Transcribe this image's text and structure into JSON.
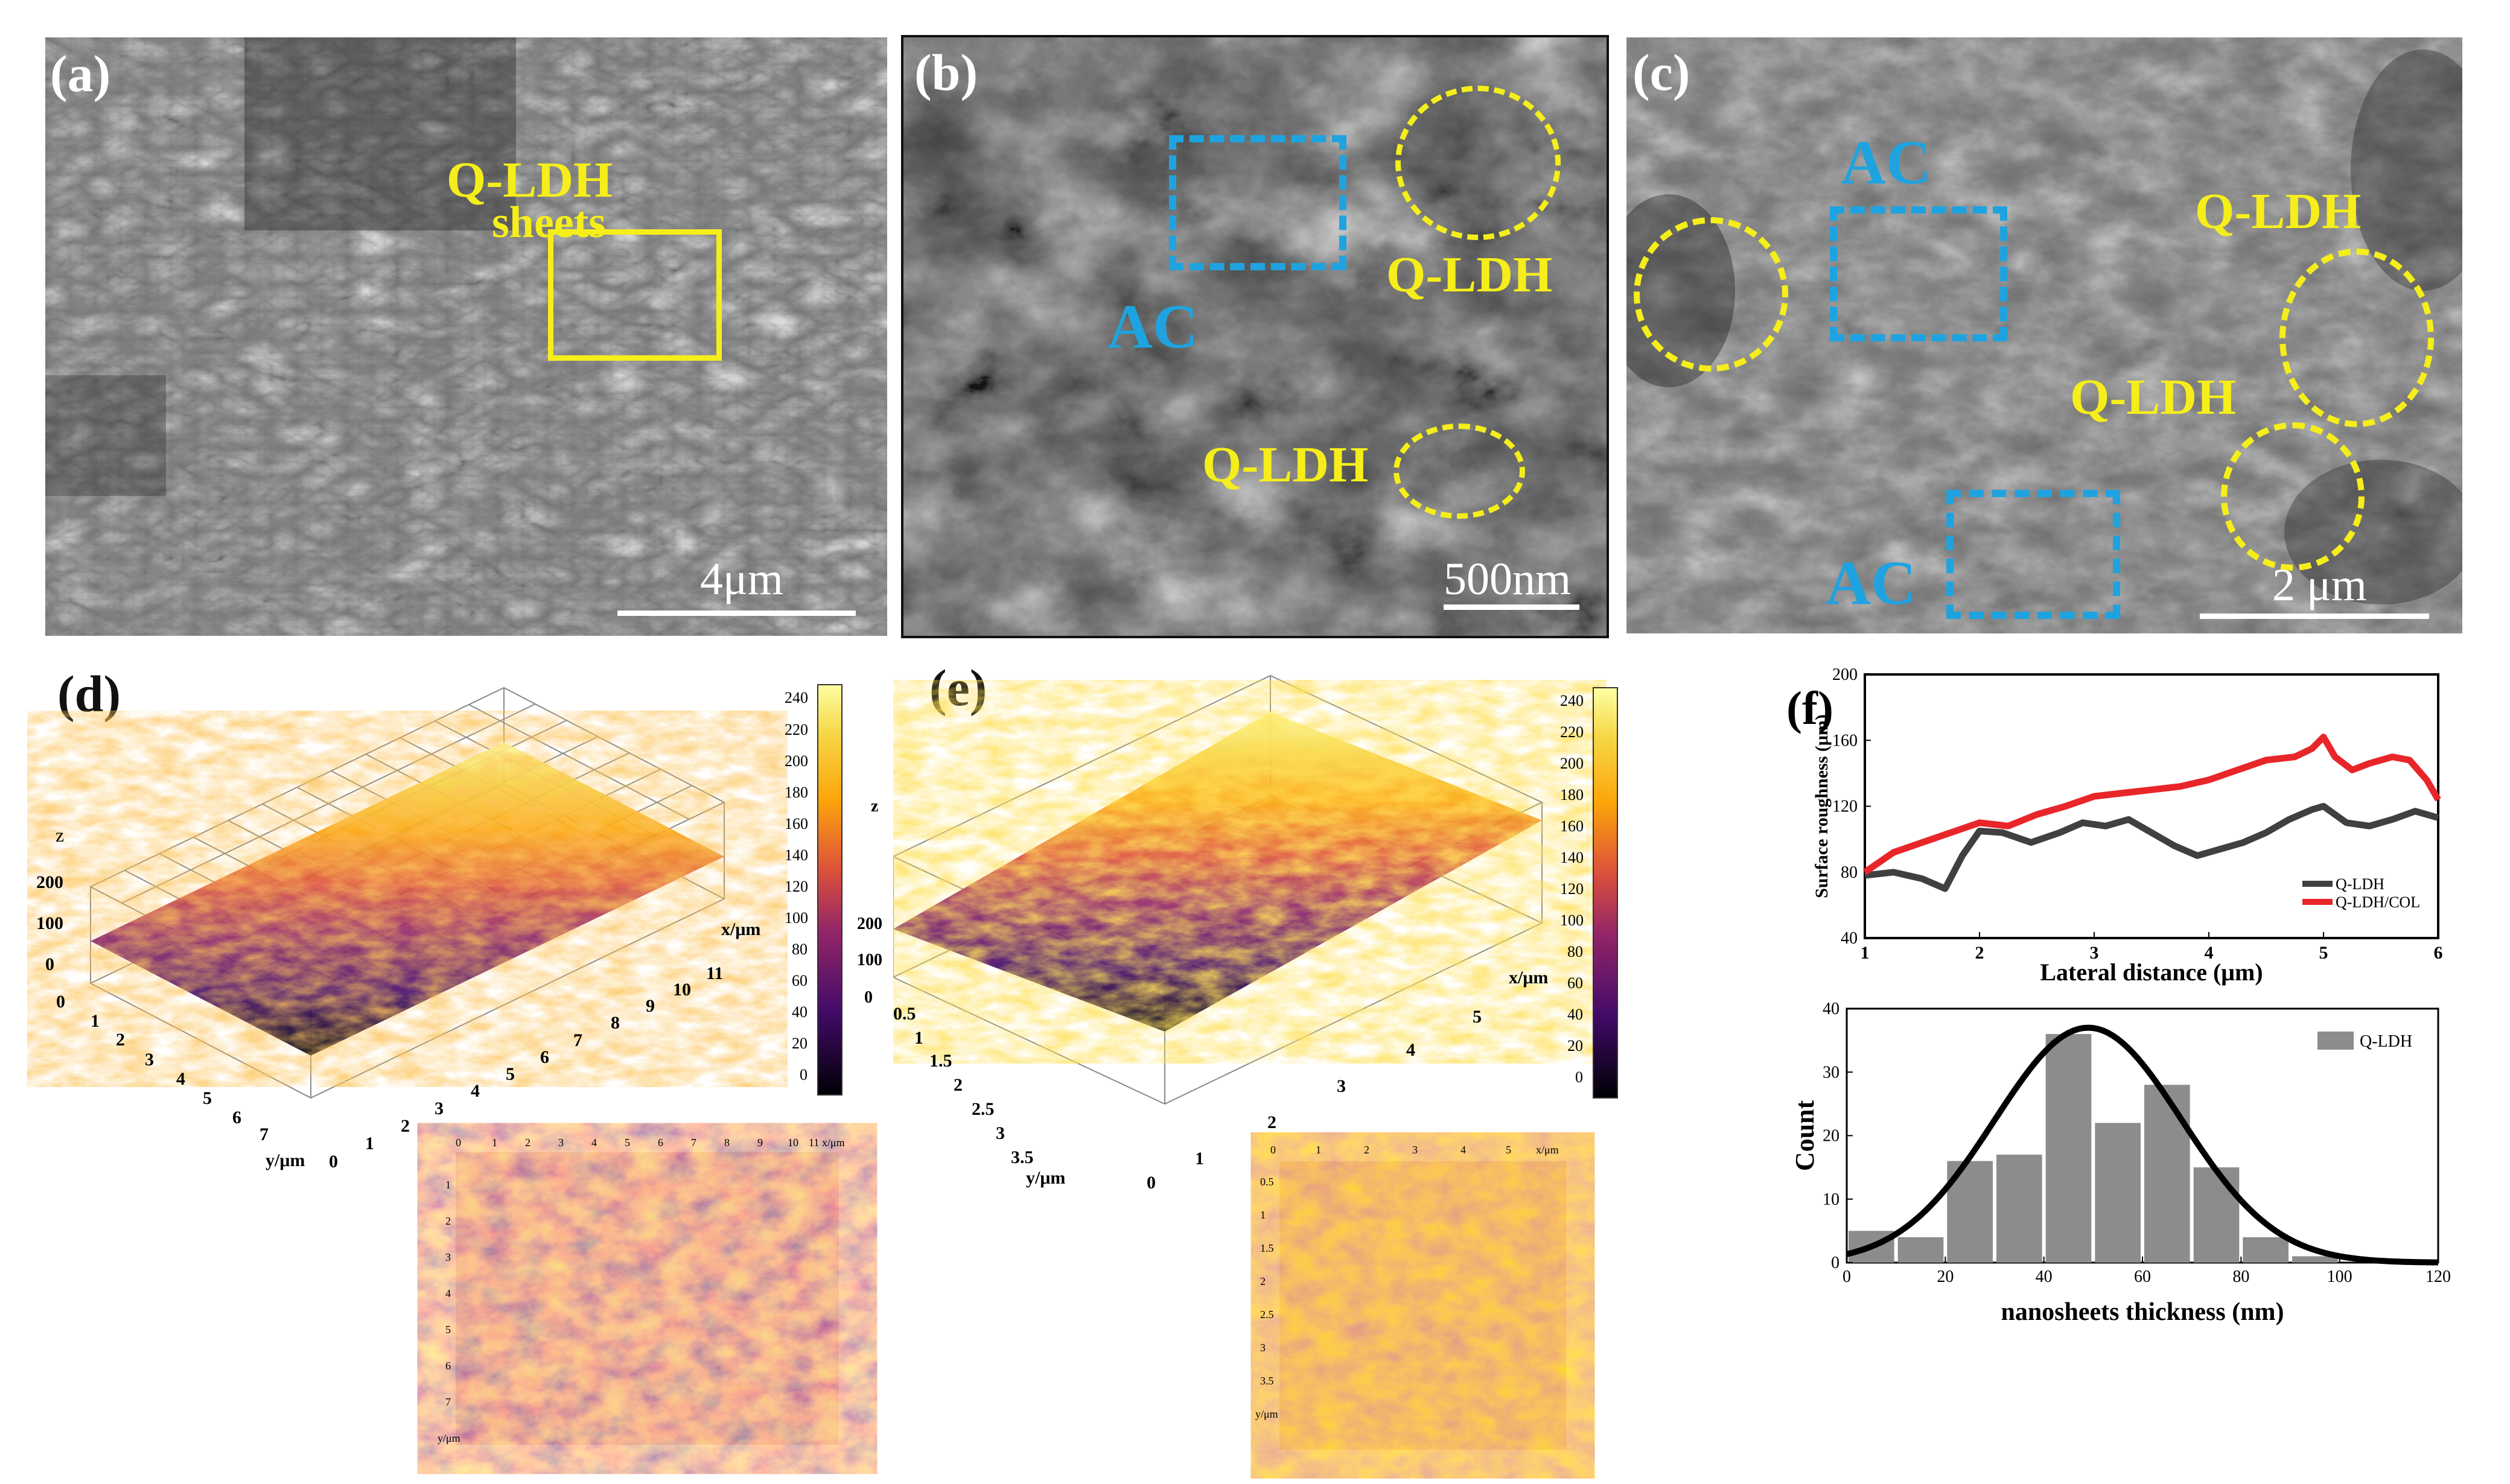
{
  "panels": {
    "a": {
      "label": "(a)",
      "ann_title": "Q-LDH",
      "ann_sub": "sheets",
      "scale": "4μm"
    },
    "b": {
      "label": "(b)",
      "ann_qldh1": "Q-LDH",
      "ann_qldh2": "Q-LDH",
      "ann_ac": "AC",
      "scale": "500nm"
    },
    "c": {
      "label": "(c)",
      "ann_ac1": "AC",
      "ann_ac2": "AC",
      "ann_qldh1": "Q-LDH",
      "ann_qldh2": "Q-LDH",
      "scale": "2 μm"
    },
    "d": {
      "label": "(d)",
      "z_label": "z",
      "x_label": "x/μm",
      "y_label": "y/μm",
      "z_ticks": [
        "200",
        "100",
        "0"
      ],
      "x_ticks": [
        "0",
        "1",
        "2",
        "3",
        "4",
        "5",
        "6",
        "7",
        "8",
        "9",
        "10",
        "11"
      ],
      "y_ticks": [
        "0",
        "1",
        "2",
        "3",
        "4",
        "5",
        "6",
        "7"
      ],
      "cb_ticks": [
        "240",
        "220",
        "200",
        "180",
        "160",
        "140",
        "120",
        "100",
        "80",
        "60",
        "40",
        "20",
        "0"
      ],
      "cb_z": [
        "z",
        "200",
        "100",
        "0"
      ],
      "map_x": [
        "0",
        "1",
        "2",
        "3",
        "4",
        "5",
        "6",
        "7",
        "8",
        "9",
        "10",
        "11",
        "x/μm"
      ],
      "map_y": [
        "1",
        "2",
        "3",
        "4",
        "5",
        "6",
        "7",
        "y/μm"
      ]
    },
    "e": {
      "label": "(e)",
      "x_label": "x/μm",
      "y_label": "y/μm",
      "x_ticks": [
        "0",
        "1",
        "2",
        "3",
        "4",
        "5"
      ],
      "y_ticks": [
        "0",
        "0.5",
        "1",
        "1.5",
        "2",
        "2.5",
        "3",
        "3.5"
      ],
      "cb_ticks": [
        "240",
        "220",
        "200",
        "180",
        "160",
        "140",
        "120",
        "100",
        "80",
        "60",
        "40",
        "20",
        "0"
      ],
      "cb_z": [
        "z",
        "200",
        "100",
        "0"
      ],
      "map_x": [
        "0",
        "1",
        "2",
        "3",
        "4",
        "5",
        "x/μm"
      ],
      "map_y": [
        "0.5",
        "1",
        "1.5",
        "2",
        "2.5",
        "3",
        "3.5",
        "y/μm"
      ]
    },
    "f": {
      "label": "(f)"
    }
  },
  "chart_data": [
    {
      "type": "line",
      "xlabel": "Lateral distance (μm)",
      "ylabel": "Surface roughness (μm)",
      "xlim": [
        1,
        6
      ],
      "ylim": [
        40,
        200
      ],
      "xticks": [
        1,
        2,
        3,
        4,
        5,
        6
      ],
      "yticks": [
        40,
        80,
        120,
        160,
        200
      ],
      "legend": "bottom-right",
      "series": [
        {
          "name": "Q-LDH",
          "color": "#404040",
          "x": [
            1.0,
            1.25,
            1.5,
            1.7,
            1.85,
            2.0,
            2.2,
            2.45,
            2.7,
            2.9,
            3.1,
            3.3,
            3.5,
            3.7,
            3.9,
            4.1,
            4.3,
            4.5,
            4.7,
            4.9,
            5.0,
            5.2,
            5.4,
            5.6,
            5.8,
            6.0
          ],
          "y": [
            78,
            80,
            76,
            70,
            90,
            105,
            104,
            98,
            104,
            110,
            108,
            112,
            104,
            96,
            90,
            94,
            98,
            104,
            112,
            118,
            120,
            110,
            108,
            112,
            117,
            113
          ]
        },
        {
          "name": "Q-LDH/COL",
          "color": "#e8262a",
          "x": [
            1.0,
            1.25,
            1.5,
            1.75,
            2.0,
            2.25,
            2.5,
            2.75,
            3.0,
            3.25,
            3.5,
            3.75,
            4.0,
            4.25,
            4.5,
            4.75,
            4.9,
            5.0,
            5.1,
            5.25,
            5.4,
            5.6,
            5.75,
            5.9,
            6.0
          ],
          "y": [
            80,
            92,
            98,
            104,
            110,
            108,
            115,
            120,
            126,
            128,
            130,
            132,
            136,
            142,
            148,
            150,
            155,
            162,
            150,
            142,
            146,
            150,
            148,
            136,
            124
          ]
        }
      ]
    },
    {
      "type": "bar",
      "xlabel": "nanosheets thickness (nm)",
      "ylabel": "Count",
      "xlim": [
        0,
        120
      ],
      "ylim": [
        0,
        40
      ],
      "xticks": [
        0,
        20,
        40,
        60,
        80,
        100,
        120
      ],
      "yticks": [
        0,
        10,
        20,
        30,
        40
      ],
      "bin_edges": [
        0,
        10,
        20,
        30,
        40,
        50,
        60,
        70,
        80,
        90,
        100,
        110,
        120
      ],
      "values": [
        5,
        4,
        16,
        17,
        36,
        22,
        28,
        15,
        4,
        1,
        0,
        0
      ],
      "legend": "top-right",
      "series": [
        {
          "name": "Q-LDH",
          "color": "#8c8c8c"
        }
      ],
      "fit": {
        "type": "gaussian",
        "mean": 49,
        "sigma": 19,
        "peak": 37,
        "color": "#000000"
      }
    }
  ]
}
